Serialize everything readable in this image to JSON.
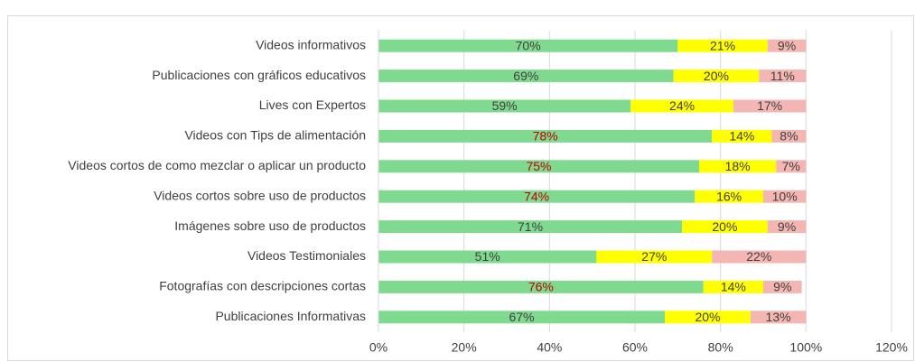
{
  "chart_data": {
    "type": "stacked_barh",
    "categories": [
      "Videos informativos",
      "Publicaciones con gráficos educativos",
      "Lives con Expertos",
      "Videos con Tips de alimentación",
      "Videos cortos de como mezclar o aplicar un producto",
      "Videos cortos sobre uso de productos",
      "Imágenes sobre uso de productos",
      "Videos Testimoniales",
      "Fotografías con descripciones cortas",
      "Publicaciones Informativas"
    ],
    "series": [
      {
        "color": "#7fd98f",
        "values": [
          70,
          69,
          59,
          78,
          75,
          74,
          71,
          51,
          76,
          67
        ],
        "value_labels": [
          "70%",
          "69%",
          "59%",
          "78%",
          "75%",
          "74%",
          "71%",
          "51%",
          "76%",
          "67%"
        ],
        "value_label_colors": [
          "#404040",
          "#404040",
          "#404040",
          "#c00000",
          "#c00000",
          "#c00000",
          "#404040",
          "#404040",
          "#c00000",
          "#404040"
        ]
      },
      {
        "color": "#ffff00",
        "values": [
          21,
          20,
          24,
          14,
          18,
          16,
          20,
          27,
          14,
          20
        ],
        "value_labels": [
          "21%",
          "20%",
          "24%",
          "14%",
          "18%",
          "16%",
          "20%",
          "27%",
          "14%",
          "20%"
        ]
      },
      {
        "color": "#f4b6b2",
        "values": [
          9,
          11,
          17,
          8,
          7,
          10,
          9,
          22,
          9,
          13
        ],
        "value_labels": [
          "9%",
          "11%",
          "17%",
          "8%",
          "7%",
          "10%",
          "9%",
          "22%",
          "9%",
          "13%"
        ]
      }
    ],
    "xlim": [
      0,
      120
    ],
    "xticks": [
      {
        "value": 0,
        "label": "0%"
      },
      {
        "value": 20,
        "label": "20%"
      },
      {
        "value": 40,
        "label": "40%"
      },
      {
        "value": 60,
        "label": "60%"
      },
      {
        "value": 80,
        "label": "80%"
      },
      {
        "value": 100,
        "label": "100%"
      },
      {
        "value": 120,
        "label": "120%"
      }
    ],
    "grid": true
  }
}
